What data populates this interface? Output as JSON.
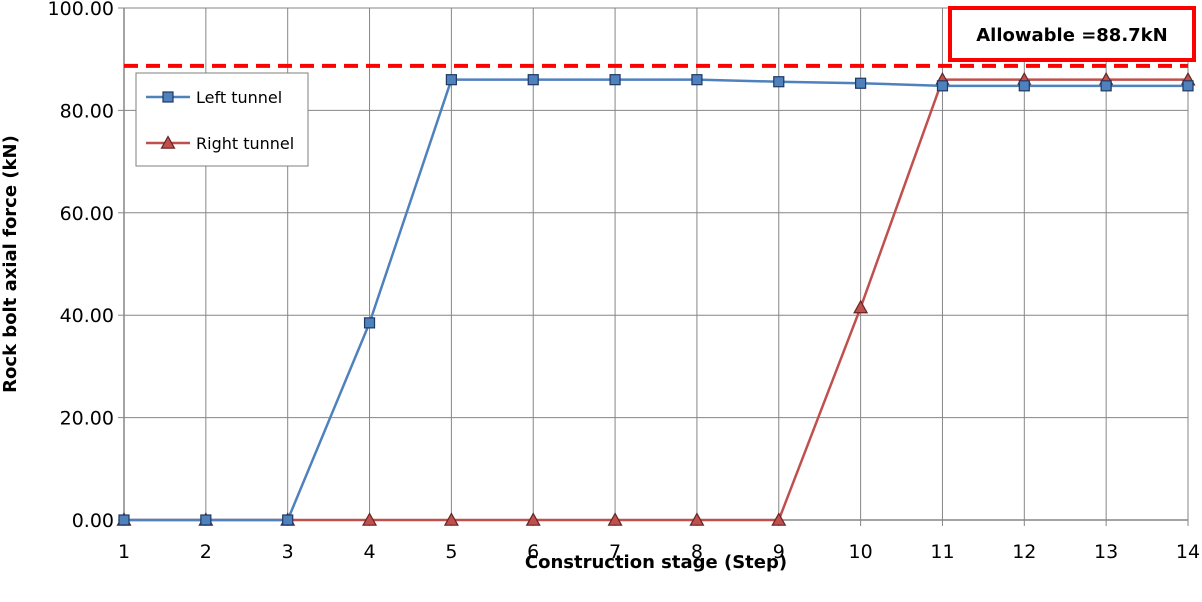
{
  "chart_data": {
    "type": "line",
    "xlabel": "Construction stage (Step)",
    "ylabel": "Rock bolt axial force (kN)",
    "x": [
      1,
      2,
      3,
      4,
      5,
      6,
      7,
      8,
      9,
      10,
      11,
      12,
      13,
      14
    ],
    "ylim": [
      0,
      100
    ],
    "yticks": [
      0,
      20,
      40,
      60,
      80,
      100
    ],
    "ytick_labels": [
      "0.00",
      "20.00",
      "40.00",
      "60.00",
      "80.00",
      "100.00"
    ],
    "grid": true,
    "legend_position": "top-left",
    "series": [
      {
        "name": "Left tunnel",
        "color": "#4f81bd",
        "marker": "square",
        "values": [
          0,
          0,
          0,
          38.5,
          86.0,
          86.0,
          86.0,
          86.0,
          85.6,
          85.3,
          84.8,
          84.8,
          84.8,
          84.8
        ]
      },
      {
        "name": "Right tunnel",
        "color": "#c0504d",
        "marker": "triangle",
        "values": [
          0,
          0,
          0,
          0,
          0,
          0,
          0,
          0,
          0,
          41.5,
          86.0,
          86.0,
          86.0,
          86.0
        ]
      }
    ],
    "annotation": {
      "label": "Allowable =88.7kN",
      "value": 88.7,
      "color": "#ff0000"
    }
  }
}
